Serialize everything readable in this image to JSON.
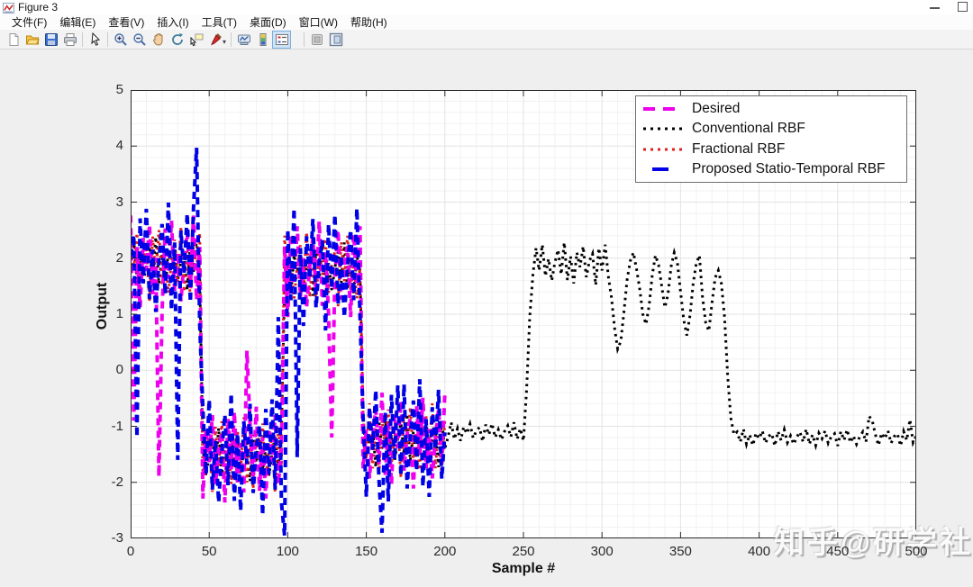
{
  "window": {
    "title": "Figure 3"
  },
  "menus": [
    "文件(F)",
    "编辑(E)",
    "查看(V)",
    "插入(I)",
    "工具(T)",
    "桌面(D)",
    "窗口(W)",
    "帮助(H)"
  ],
  "toolbar": {
    "icons": [
      "new-figure",
      "open-file",
      "save-figure",
      "print-figure",
      "edit-plot-cursor",
      "zoom-in",
      "zoom-out",
      "pan-hand",
      "rotate-3d",
      "data-cursor",
      "brush-data",
      "link-plot",
      "insert-colorbar",
      "insert-legend",
      "hide-plot-tools",
      "show-plot-tools-dock"
    ],
    "active_icon": "insert-legend"
  },
  "watermark": {
    "text": "知乎@研学社"
  },
  "chart_data": {
    "type": "line",
    "title": "",
    "xlabel": "Sample #",
    "ylabel": "Output",
    "xlim": [
      0,
      500
    ],
    "ylim": [
      -3,
      5
    ],
    "x_ticks": [
      0,
      50,
      100,
      150,
      200,
      250,
      300,
      350,
      400,
      450,
      500
    ],
    "y_ticks": [
      -3,
      -2,
      -1,
      0,
      1,
      2,
      3,
      4,
      5
    ],
    "grid": "minor",
    "legend_position": "top-right",
    "draw_order": [
      1,
      2,
      0,
      3
    ],
    "series": [
      {
        "name": "Desired",
        "color": "#EE00EE",
        "style": "dashed",
        "width": 4,
        "x_start": 0,
        "x_step": 2,
        "y": [
          2.76,
          -0.9,
          2.2,
          1.11,
          2.36,
          1.77,
          2.6,
          1.36,
          2.01,
          -1.9,
          1.05,
          2.53,
          1.63,
          2.67,
          1.41,
          2.1,
          1.23,
          1.95,
          2.46,
          1.47,
          2.76,
          1.25,
          2.2,
          -2.29,
          -1.04,
          -1.64,
          -0.8,
          -2.04,
          -1.39,
          -1.1,
          -2.36,
          -0.87,
          -1.77,
          -0.74,
          -2.0,
          -1.3,
          -2.18,
          0.35,
          -0.94,
          -1.93,
          -0.65,
          -2.15,
          -1.2,
          -2.29,
          -1.04,
          -1.64,
          -0.8,
          -2.04,
          -1.39,
          2.21,
          0.95,
          2.43,
          1.53,
          2.57,
          1.31,
          2.0,
          1.13,
          1.85,
          2.36,
          1.37,
          2.66,
          1.15,
          2.1,
          1.01,
          -1.2,
          1.67,
          2.5,
          1.26,
          1.91,
          2.21,
          0.95,
          2.43,
          1.53,
          2.57,
          -1.75,
          -1.05,
          -1.93,
          -1.21,
          -0.69,
          -1.68,
          -0.4,
          -1.9,
          -0.95,
          -2.04,
          -0.79,
          -1.39,
          -0.55,
          -1.79,
          -1.14,
          -0.85,
          -2.11,
          -0.62,
          -1.52,
          -0.49,
          -1.75,
          -1.05,
          -1.93,
          -1.21,
          -0.69,
          -1.68,
          -0.4
        ]
      },
      {
        "name": "Conventional RBF",
        "color": "#000000",
        "style": "dotted",
        "width": 3,
        "x_start": 0,
        "x_step": 2,
        "y": [
          1.75,
          2.33,
          1.63,
          2.01,
          1.53,
          1.93,
          2.21,
          1.66,
          2.38,
          1.54,
          2.07,
          1.46,
          2.16,
          1.83,
          2.29,
          1.6,
          1.96,
          2.13,
          1.43,
          2.25,
          1.75,
          2.33,
          1.63,
          -1.39,
          -1.88,
          -1.48,
          -1.19,
          -1.74,
          -1.03,
          -1.86,
          -1.34,
          -1.94,
          -1.25,
          -1.58,
          -1.11,
          -1.8,
          -1.44,
          -1.28,
          -1.98,
          -1.15,
          -1.65,
          -1.08,
          -1.78,
          -1.39,
          -1.88,
          -1.48,
          -1.19,
          -1.74,
          -1.03,
          1.44,
          1.97,
          1.36,
          2.06,
          1.73,
          2.19,
          1.5,
          1.86,
          2.03,
          1.33,
          2.15,
          1.65,
          2.23,
          1.53,
          1.91,
          1.43,
          1.83,
          2.11,
          1.56,
          2.28,
          1.44,
          1.97,
          1.36,
          2.06,
          1.73,
          -0.86,
          -1.55,
          -1.19,
          -1.03,
          -1.73,
          -0.9,
          -1.4,
          -0.83,
          -1.53,
          -1.14,
          -1.63,
          -1.23,
          -0.94,
          -1.49,
          -0.78,
          -1.61,
          -1.09,
          -1.69,
          -1.0,
          -1.33,
          -0.86,
          -1.55,
          -1.19,
          -1.03,
          -1.73,
          -0.9,
          -1.4,
          -1.19,
          -0.93,
          -1.23,
          -1.04,
          -1.26,
          -1.01,
          -1.13,
          -0.96,
          -1.21,
          -1.08,
          -1.02,
          -1.27,
          -0.97,
          -1.15,
          -0.95,
          -1.2,
          -1.06,
          -1.24,
          -1.09,
          -0.99,
          -1.19,
          -0.93,
          -1.23,
          -1.04,
          -1.26,
          -0.35,
          0.95,
          1.7,
          2.18,
          1.78,
          2.24,
          1.68,
          1.99,
          1.6,
          1.92,
          2.15,
          1.71,
          2.28,
          1.61,
          2.03,
          1.55,
          2.1,
          1.84,
          2.21,
          1.66,
          1.95,
          2.08,
          1.52,
          2.18,
          1.78,
          2.24,
          1.68,
          1.3,
          0.75,
          0.38,
          0.52,
          1.05,
          1.62,
          1.95,
          2.1,
          1.8,
          1.45,
          1.0,
          0.82,
          1.15,
          1.7,
          2.05,
          1.88,
          1.5,
          1.12,
          1.35,
          1.85,
          2.1,
          1.92,
          1.4,
          0.9,
          0.62,
          0.98,
          1.55,
          1.9,
          2.05,
          1.3,
          0.85,
          0.7,
          1.2,
          1.65,
          1.78,
          1.55,
          0.95,
          -0.1,
          -0.85,
          -1.15,
          -1.1,
          -1.28,
          -1.05,
          -1.32,
          -1.15,
          -1.34,
          -1.12,
          -1.22,
          -1.08,
          -1.3,
          -1.18,
          -1.13,
          -1.35,
          -1.09,
          -1.25,
          -1.06,
          -1.29,
          -1.17,
          -1.32,
          -1.19,
          -1.1,
          -1.28,
          -1.05,
          -1.32,
          -1.15,
          -1.34,
          -1.12,
          -1.22,
          -1.08,
          -1.3,
          -1.18,
          -1.13,
          -1.35,
          -1.09,
          -1.25,
          -1.06,
          -1.29,
          -1.17,
          -1.32,
          -1.19,
          -1.1,
          -1.28,
          -0.82,
          -0.9,
          -1.15,
          -1.34,
          -1.12,
          -1.22,
          -1.08,
          -1.3,
          -1.18,
          -1.13,
          -1.35,
          -1.09,
          -1.25,
          -0.88,
          -1.29,
          -1.17
        ]
      },
      {
        "name": "Fractional RBF",
        "color": "#E02020",
        "style": "dotted",
        "width": 3,
        "x_start": 0,
        "x_step": 2,
        "y": [
          2.26,
          1.8,
          2.45,
          1.48,
          1.98,
          2.22,
          1.24,
          2.39,
          1.69,
          2.5,
          1.52,
          2.05,
          1.38,
          1.94,
          2.33,
          1.56,
          2.57,
          1.4,
          2.13,
          1.28,
          2.26,
          1.8,
          2.45,
          -1.92,
          -1.42,
          -1.19,
          -2.17,
          -1.01,
          -1.71,
          -0.91,
          -1.89,
          -1.35,
          -2.03,
          -1.47,
          -1.07,
          -1.84,
          -0.84,
          -2.0,
          -1.27,
          -2.12,
          -1.14,
          -1.61,
          -0.95,
          -1.92,
          -1.42,
          -1.19,
          -2.17,
          -1.01,
          -1.71,
          2.4,
          1.42,
          1.95,
          1.28,
          1.84,
          2.23,
          1.46,
          2.47,
          1.3,
          2.03,
          1.18,
          2.16,
          1.7,
          2.35,
          1.38,
          1.88,
          2.12,
          1.14,
          2.29,
          1.59,
          2.4,
          1.42,
          1.95,
          1.28,
          1.84,
          -0.82,
          -1.59,
          -0.59,
          -1.75,
          -1.02,
          -1.87,
          -0.89,
          -1.36,
          -0.7,
          -1.67,
          -1.17,
          -0.94,
          -1.92,
          -0.76,
          -1.46,
          -0.66,
          -1.64,
          -1.1,
          -1.78,
          -1.22,
          -0.82,
          -1.59,
          -0.59,
          -1.75,
          -1.02,
          -1.87,
          -0.89
        ]
      },
      {
        "name": "Proposed Statio-Temporal RBF",
        "color": "#0000E6",
        "style": "dashed",
        "width": 4,
        "x_start": 0,
        "x_step": 2,
        "y": [
          2.04,
          2.42,
          -1.2,
          2.71,
          1.55,
          2.88,
          1.27,
          2.15,
          1.04,
          1.96,
          2.61,
          1.35,
          2.99,
          1.07,
          2.28,
          -1.6,
          2.49,
          1.73,
          2.8,
          1.21,
          2.9,
          3.97,
          0.81,
          -0.69,
          -1.85,
          -0.52,
          -2.13,
          -1.25,
          -2.36,
          -1.44,
          -0.79,
          -2.05,
          -0.41,
          -2.33,
          -1.12,
          -2.51,
          -0.91,
          -1.67,
          -0.6,
          -2.19,
          -1.36,
          -0.98,
          -2.59,
          -0.69,
          -1.85,
          -0.52,
          -2.13,
          0.95,
          -2.36,
          -2.95,
          2.51,
          1.25,
          2.89,
          -1.55,
          2.18,
          0.79,
          2.39,
          1.63,
          2.7,
          1.11,
          1.94,
          2.32,
          0.71,
          2.61,
          1.45,
          2.78,
          1.17,
          2.05,
          0.94,
          1.86,
          2.51,
          1.25,
          2.89,
          0.97,
          -0.87,
          -2.26,
          -0.66,
          -1.42,
          -0.35,
          -1.94,
          -2.9,
          -0.73,
          -2.34,
          -0.44,
          -1.6,
          -0.27,
          -1.88,
          -0.25,
          -2.11,
          -1.19,
          -0.54,
          -1.8,
          -0.16,
          -2.08,
          -0.87,
          -2.26,
          -0.66,
          -1.42,
          -0.35,
          -1.94,
          -1.11
        ]
      }
    ]
  }
}
